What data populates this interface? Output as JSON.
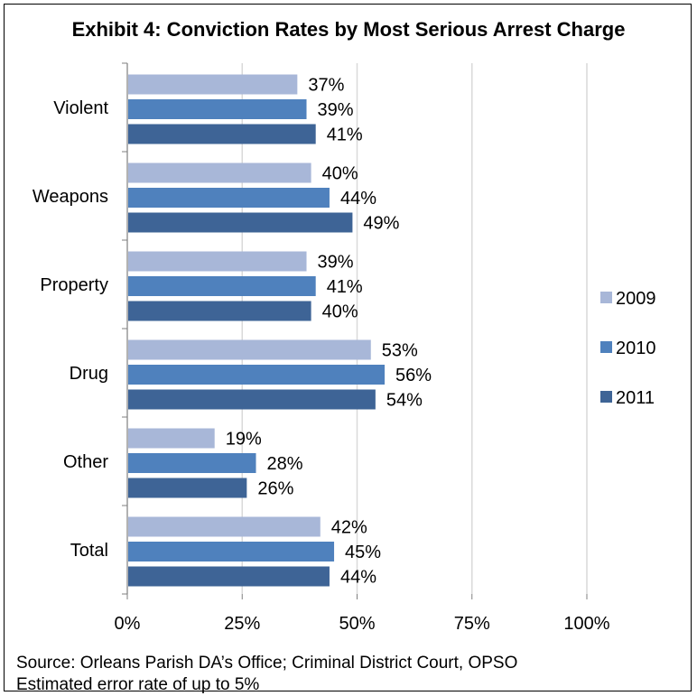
{
  "chart_data": {
    "type": "bar",
    "orientation": "horizontal",
    "title": "Exhibit 4: Conviction Rates by Most Serious Arrest Charge",
    "categories": [
      "Violent",
      "Weapons",
      "Property",
      "Drug",
      "Other",
      "Total"
    ],
    "series": [
      {
        "name": "2009",
        "color": "#a8b7d8",
        "values": [
          37,
          40,
          39,
          53,
          19,
          42
        ],
        "labels": [
          "37%",
          "40%",
          "39%",
          "53%",
          "19%",
          "42%"
        ]
      },
      {
        "name": "2010",
        "color": "#4f81bd",
        "values": [
          39,
          44,
          41,
          56,
          28,
          45
        ],
        "labels": [
          "39%",
          "44%",
          "41%",
          "56%",
          "28%",
          "45%"
        ]
      },
      {
        "name": "2011",
        "color": "#3e6496",
        "values": [
          41,
          49,
          40,
          54,
          26,
          44
        ],
        "labels": [
          "41%",
          "49%",
          "40%",
          "54%",
          "26%",
          "44%"
        ]
      }
    ],
    "xlim": [
      0,
      100
    ],
    "xticks": [
      0,
      25,
      50,
      75,
      100
    ],
    "xtick_labels": [
      "0%",
      "25%",
      "50%",
      "75%",
      "100%"
    ],
    "grid": true,
    "legend_position": "right",
    "source_lines": [
      "Source: Orleans Parish DA’s Office; Criminal District Court, OPSO",
      "Estimated error rate of up to 5%"
    ]
  }
}
